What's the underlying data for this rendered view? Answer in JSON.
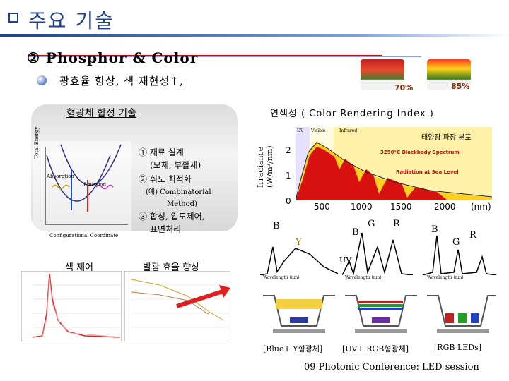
{
  "header": {
    "title": "주요 기술"
  },
  "section": {
    "title": "② Phosphor & Color"
  },
  "bullet": {
    "text": "광효율 향상, 색 재현성↑,"
  },
  "photos": {
    "pct_left": "70%",
    "pct_right": "85%"
  },
  "left_panel": {
    "title": "형광체 합성 기술",
    "items": [
      "① 재료 설계",
      "(모체, 부활제)",
      "② 휘도 최적화",
      "(예) Combinatorial",
      "Method)",
      "③ 합성, 입도제어,",
      "표면처리"
    ],
    "diagram_labels": {
      "ylabel": "Total Energy",
      "xlabel": "Configurational Coordinate",
      "absorption": "Absorption",
      "emission": "Emission"
    }
  },
  "cri": {
    "title": "연색성 ( Color Rendering Index )",
    "ylabel": "Irradiance (W/m²/nm)",
    "solar_title": "태양광 파장 분포",
    "y_ticks": [
      "2",
      "1",
      "0"
    ],
    "x_ticks": [
      "500",
      "1000",
      "1500",
      "2000"
    ],
    "x_unit": "(nm)",
    "legend": [
      "3250°C Blackbody Spectrum",
      "Radiation at Sea Level",
      "UV",
      "Visible",
      "Infrared"
    ]
  },
  "color_control": {
    "label": "색 제어"
  },
  "efficiency": {
    "label": "발광 효율 향상"
  },
  "spectra": {
    "labels": {
      "b1": "B",
      "y1": "Y",
      "b2": "B",
      "g2": "G",
      "r2": "R",
      "b3": "B",
      "g3": "G",
      "r3": "R",
      "uv": "UV"
    },
    "xlabel": "Wavelength (nm)"
  },
  "leds": {
    "captions": [
      "[Blue+ Y형광체]",
      "[UV+ RGB형광체]",
      "[RGB LEDs]"
    ]
  },
  "footer": {
    "text": "09 Photonic Conference: LED session"
  }
}
